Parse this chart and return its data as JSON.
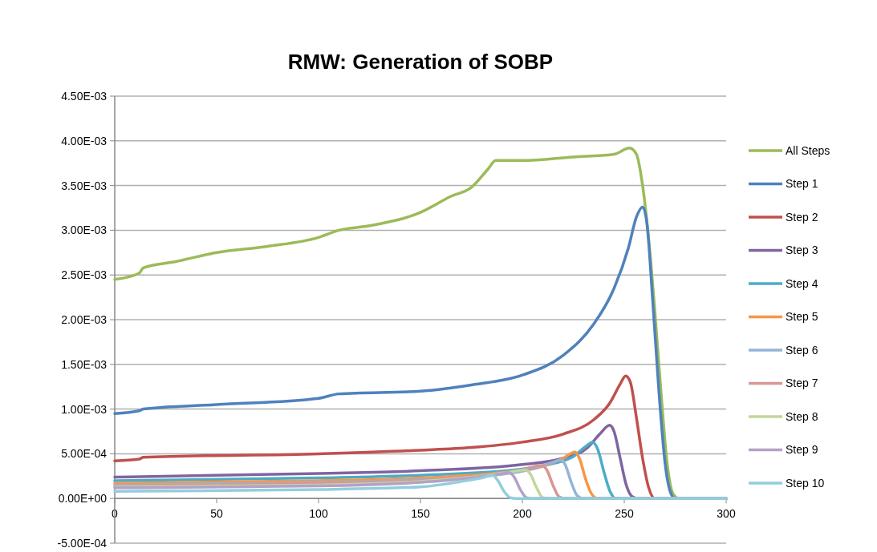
{
  "chart_data": {
    "type": "line",
    "title": "RMW: Generation of SOBP",
    "xlim": [
      0,
      300
    ],
    "xticks": [
      0,
      50,
      100,
      150,
      200,
      250,
      300
    ],
    "ylim": [
      -0.0005,
      0.0045
    ],
    "yticks": [
      {
        "value": -0.0005,
        "label": "-5.00E-04"
      },
      {
        "value": 0,
        "label": "0.00E+00"
      },
      {
        "value": 0.0005,
        "label": "5.00E-04"
      },
      {
        "value": 0.001,
        "label": "1.00E-03"
      },
      {
        "value": 0.0015,
        "label": "1.50E-03"
      },
      {
        "value": 0.002,
        "label": "2.00E-03"
      },
      {
        "value": 0.0025,
        "label": "2.50E-03"
      },
      {
        "value": 0.003,
        "label": "3.00E-03"
      },
      {
        "value": 0.0035,
        "label": "3.50E-03"
      },
      {
        "value": 0.004,
        "label": "4.00E-03"
      },
      {
        "value": 0.0045,
        "label": "4.50E-03"
      }
    ],
    "grid": "y",
    "legend": "right",
    "marker": "none",
    "line_style": "solid",
    "series": [
      {
        "name": "All Steps",
        "color": "#9bbb59",
        "x": [
          0,
          12,
          14,
          30,
          50,
          75,
          100,
          110,
          125,
          150,
          165,
          175,
          183,
          187,
          200,
          225,
          245,
          252.6,
          256,
          259,
          262,
          265,
          268,
          271,
          274,
          277,
          300
        ],
        "values": [
          0.00245,
          0.00252,
          0.00258,
          0.00265,
          0.00275,
          0.00282,
          0.00292,
          0.003,
          0.00305,
          0.0032,
          0.00338,
          0.00348,
          0.00368,
          0.00378,
          0.00378,
          0.00382,
          0.00385,
          0.00392,
          0.00385,
          0.0035,
          0.0029,
          0.0021,
          0.0012,
          0.0004,
          5e-05,
          0,
          0
        ]
      },
      {
        "name": "Step 1",
        "color": "#4f81bd",
        "x": [
          0,
          12,
          14,
          50,
          100,
          110,
          150,
          175,
          200,
          220,
          235,
          245,
          252,
          256,
          259,
          261,
          264,
          267,
          270,
          273,
          275,
          300
        ],
        "values": [
          0.00095,
          0.00098,
          0.001,
          0.00105,
          0.00112,
          0.00117,
          0.0012,
          0.00127,
          0.00138,
          0.0016,
          0.00195,
          0.00235,
          0.0028,
          0.00315,
          0.00326,
          0.0031,
          0.0022,
          0.0012,
          0.0004,
          5e-05,
          0,
          0
        ]
      },
      {
        "name": "Step 2",
        "color": "#c0504d",
        "x": [
          0,
          12,
          14,
          100,
          150,
          175,
          200,
          220,
          235,
          243,
          248,
          250.7,
          253,
          256,
          259,
          262,
          265,
          300
        ],
        "values": [
          0.00042,
          0.00044,
          0.00046,
          0.0005,
          0.00054,
          0.00057,
          0.00063,
          0.00072,
          0.00088,
          0.00107,
          0.00128,
          0.00137,
          0.0013,
          0.0009,
          0.00045,
          0.00012,
          0,
          0
        ]
      },
      {
        "name": "Step 3",
        "color": "#8064a2",
        "x": [
          0,
          100,
          150,
          200,
          220,
          232,
          238,
          242.8,
          245,
          248,
          251,
          254,
          257,
          300
        ],
        "values": [
          0.00024,
          0.00028,
          0.00031,
          0.00038,
          0.00045,
          0.00057,
          0.00072,
          0.00082,
          0.00075,
          0.00045,
          0.00015,
          2e-05,
          0,
          0
        ]
      },
      {
        "name": "Step 4",
        "color": "#4bacc6",
        "x": [
          0,
          100,
          150,
          200,
          215,
          225,
          231,
          234.5,
          237,
          240,
          243,
          246,
          300
        ],
        "values": [
          0.0002,
          0.00023,
          0.00026,
          0.00033,
          0.00039,
          0.00047,
          0.00058,
          0.00063,
          0.00055,
          0.0003,
          8e-05,
          0,
          0
        ]
      },
      {
        "name": "Step 5",
        "color": "#f79646",
        "x": [
          0,
          100,
          150,
          190,
          210,
          220,
          225.8,
          228,
          231,
          234,
          237,
          300
        ],
        "values": [
          0.00017,
          0.0002,
          0.00023,
          0.00029,
          0.00036,
          0.00045,
          0.00052,
          0.00045,
          0.00022,
          5e-05,
          0,
          0
        ]
      },
      {
        "name": "Step 6",
        "color": "#95b3d7",
        "x": [
          0,
          100,
          150,
          190,
          205,
          214,
          219,
          221,
          224,
          227,
          230,
          300
        ],
        "values": [
          0.00015,
          0.00018,
          0.00021,
          0.00027,
          0.00033,
          0.0004,
          0.00043,
          0.00038,
          0.00018,
          3e-05,
          0,
          0
        ]
      },
      {
        "name": "Step 7",
        "color": "#d99694",
        "x": [
          0,
          100,
          150,
          185,
          200,
          209.6,
          212,
          215,
          218,
          221,
          300
        ],
        "values": [
          0.00014,
          0.00017,
          0.0002,
          0.00027,
          0.00032,
          0.00037,
          0.00032,
          0.00015,
          2e-05,
          0,
          0
        ]
      },
      {
        "name": "Step 8",
        "color": "#c3d69b",
        "x": [
          0,
          100,
          150,
          180,
          195,
          201.7,
          204,
          207,
          210,
          213,
          300
        ],
        "values": [
          0.00013,
          0.00015,
          0.00019,
          0.00025,
          0.0003,
          0.00032,
          0.00027,
          0.00012,
          1e-05,
          0,
          0
        ]
      },
      {
        "name": "Step 9",
        "color": "#b3a2c7",
        "x": [
          0,
          100,
          150,
          175,
          188,
          193.4,
          196,
          199,
          202,
          205,
          300
        ],
        "values": [
          0.00012,
          0.00014,
          0.00018,
          0.00023,
          0.00027,
          0.00029,
          0.00024,
          0.0001,
          1e-05,
          0,
          0
        ]
      },
      {
        "name": "Step 10",
        "color": "#93cddd",
        "x": [
          0,
          100,
          150,
          170,
          180,
          185.5,
          188,
          191,
          194,
          197,
          300
        ],
        "values": [
          8e-05,
          0.0001,
          0.00013,
          0.00019,
          0.00023,
          0.00026,
          0.0002,
          8e-05,
          1e-05,
          0,
          0
        ]
      }
    ]
  }
}
